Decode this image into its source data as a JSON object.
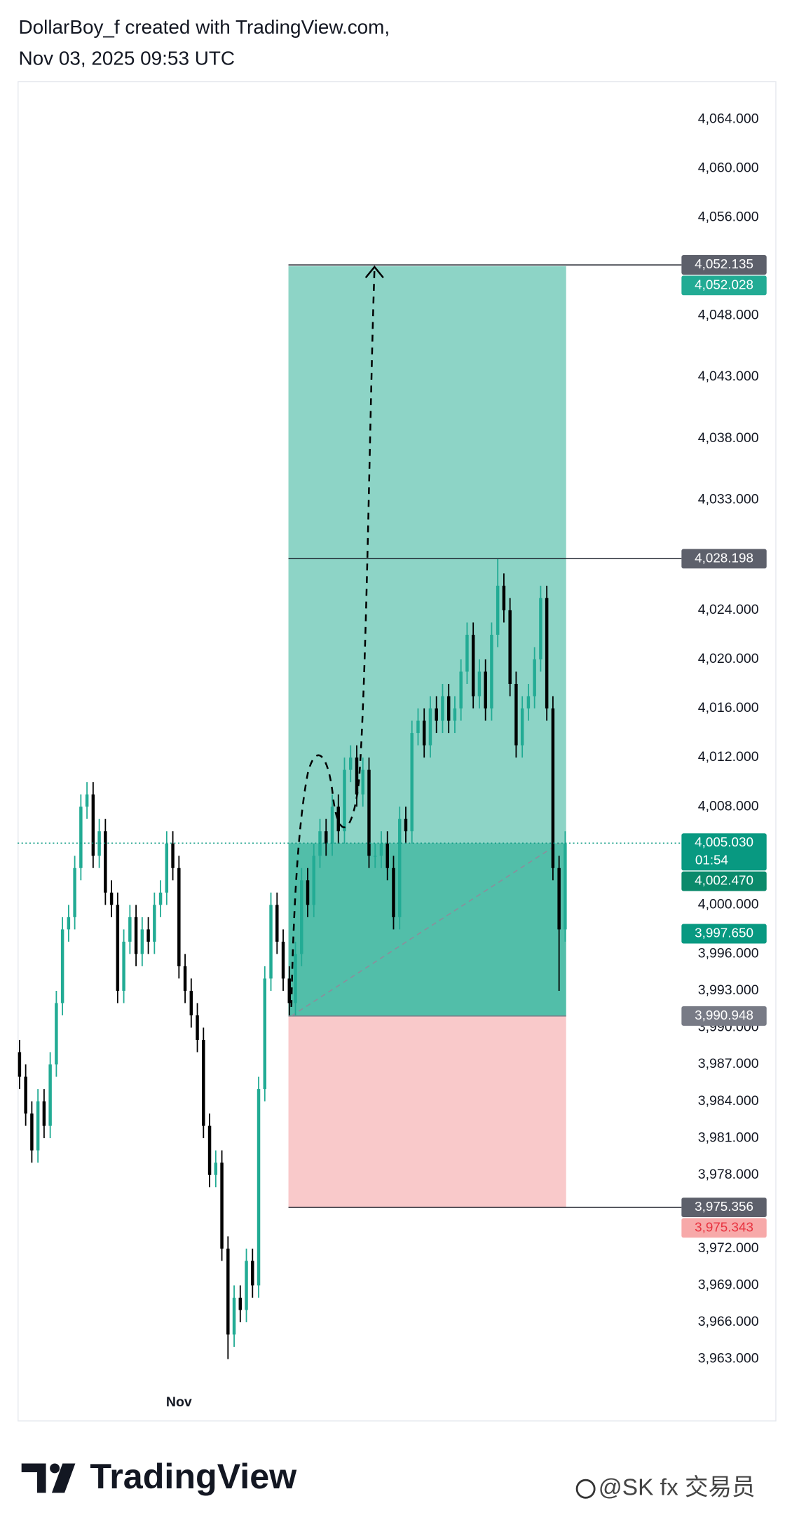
{
  "header": {
    "line1": "DollarBoy_f created with TradingView.com,",
    "line2": "Nov 03, 2025 09:53 UTC"
  },
  "chart_data": {
    "type": "candlestick",
    "ylim": [
      3958.0,
      4067.1
    ],
    "yticks": [
      {
        "value": 4064,
        "label": "4,064.000"
      },
      {
        "value": 4060,
        "label": "4,060.000"
      },
      {
        "value": 4056,
        "label": "4,056.000"
      },
      {
        "value": 4048,
        "label": "4,048.000"
      },
      {
        "value": 4043,
        "label": "4,043.000"
      },
      {
        "value": 4038,
        "label": "4,038.000"
      },
      {
        "value": 4033,
        "label": "4,033.000"
      },
      {
        "value": 4024,
        "label": "4,024.000"
      },
      {
        "value": 4020,
        "label": "4,020.000"
      },
      {
        "value": 4016,
        "label": "4,016.000"
      },
      {
        "value": 4012,
        "label": "4,012.000"
      },
      {
        "value": 4008,
        "label": "4,008.000"
      },
      {
        "value": 4000,
        "label": "4,000.000"
      },
      {
        "value": 3996,
        "label": "3,996.000"
      },
      {
        "value": 3993,
        "label": "3,993.000"
      },
      {
        "value": 3990,
        "label": "3,990.000"
      },
      {
        "value": 3987,
        "label": "3,987.000"
      },
      {
        "value": 3984,
        "label": "3,984.000"
      },
      {
        "value": 3981,
        "label": "3,981.000"
      },
      {
        "value": 3978,
        "label": "3,978.000"
      },
      {
        "value": 3972,
        "label": "3,972.000"
      },
      {
        "value": 3969,
        "label": "3,969.000"
      },
      {
        "value": 3966,
        "label": "3,966.000"
      },
      {
        "value": 3963,
        "label": "3,963.000"
      }
    ],
    "categories": [
      null,
      null,
      null,
      null,
      null,
      null,
      null,
      null,
      null,
      null,
      null,
      null,
      null,
      null,
      null,
      null,
      null,
      null,
      null,
      null,
      null,
      null,
      null,
      null,
      null,
      null,
      "Nov",
      null,
      null,
      null,
      null,
      null,
      null,
      null,
      null,
      null,
      null,
      null,
      null,
      null,
      null,
      null,
      null,
      null,
      null,
      null,
      null,
      null,
      null,
      null,
      null,
      null,
      null,
      null,
      null,
      null,
      null,
      null,
      null,
      null,
      null,
      null,
      null,
      null,
      null,
      null,
      null,
      null,
      null,
      null,
      null,
      null,
      null,
      null,
      null,
      null,
      null,
      null,
      null,
      null,
      null,
      null,
      null,
      null,
      null,
      null,
      null,
      null,
      null,
      null
    ],
    "open": [
      3988,
      3986,
      3983,
      3980,
      3984,
      3982,
      3987,
      3992,
      3998,
      3999,
      4003,
      4008,
      4009,
      4004,
      4006,
      4001,
      4000,
      3993,
      3997,
      3999,
      3996,
      3998,
      3997,
      4000,
      4001,
      4005,
      4003,
      3995,
      3993,
      3991,
      3989,
      3982,
      3978,
      3979,
      3972,
      3965,
      3968,
      3967,
      3971,
      3969,
      3985,
      3994,
      4000,
      3997,
      3994,
      3992,
      3996,
      4002,
      4000,
      4004,
      4006,
      4005,
      4008,
      4006,
      4011,
      4012,
      4009,
      4011,
      4004,
      4004,
      4005,
      4003,
      3999,
      4007,
      4006,
      4014,
      4015,
      4013,
      4016,
      4015,
      4017,
      4015,
      4016,
      4019,
      4022,
      4017,
      4019,
      4016,
      4022,
      4026,
      4024,
      4018,
      4013,
      4016,
      4017,
      4020,
      4025,
      4016,
      4003,
      3998
    ],
    "high": [
      3989,
      3987,
      3984,
      3985,
      3985,
      3988,
      3993,
      3999,
      4000,
      4004,
      4009,
      4010,
      4010,
      4007,
      4007,
      4002,
      4001,
      3998,
      4000,
      4000,
      3999,
      3999,
      4001,
      4002,
      4006,
      4006,
      4004,
      3996,
      3994,
      3992,
      3990,
      3983,
      3980,
      3980,
      3973,
      3969,
      3969,
      3972,
      3972,
      3986,
      3995,
      4001,
      4001,
      3998,
      3995,
      3997,
      4003,
      4003,
      4005,
      4007,
      4007,
      4009,
      4009,
      4012,
      4013,
      4013,
      4012,
      4012,
      4005,
      4006,
      4006,
      4004,
      4008,
      4008,
      4015,
      4016,
      4016,
      4017,
      4017,
      4018,
      4018,
      4017,
      4020,
      4023,
      4023,
      4020,
      4020,
      4023,
      4028.198,
      4027,
      4025,
      4019,
      4017,
      4018,
      4021,
      4026,
      4026,
      4017,
      4004,
      4006
    ],
    "low": [
      3985,
      3982,
      3979,
      3979,
      3981,
      3981,
      3986,
      3991,
      3997,
      3998,
      4002,
      4007,
      4003,
      4003,
      4000,
      3999,
      3992,
      3992,
      3996,
      3995,
      3995,
      3996,
      3996,
      3999,
      4000,
      4002,
      3994,
      3992,
      3990,
      3988,
      3981,
      3977,
      3977,
      3971,
      3963,
      3964,
      3966,
      3966,
      3968,
      3968,
      3984,
      3993,
      3996,
      3993,
      3991,
      3991,
      3995,
      3999,
      3999,
      4003,
      4004,
      4004,
      4005,
      4005,
      4010,
      4008,
      4008,
      4003,
      4003,
      4003,
      4002,
      3998,
      3998,
      4005,
      4005,
      4013,
      4012,
      4012,
      4014,
      4014,
      4014,
      4014,
      4015,
      4018,
      4016,
      4016,
      4015,
      4015,
      4021,
      4023,
      4017,
      4012,
      4012,
      4015,
      4016,
      4019,
      4015,
      4002,
      3993,
      3997
    ],
    "close": [
      3986,
      3983,
      3980,
      3984,
      3982,
      3987,
      3992,
      3998,
      3999,
      4003,
      4008,
      4009,
      4004,
      4006,
      4001,
      4000,
      3993,
      3997,
      3999,
      3996,
      3998,
      3997,
      4000,
      4001,
      4005,
      4003,
      3995,
      3993,
      3991,
      3989,
      3982,
      3978,
      3979,
      3972,
      3965,
      3968,
      3967,
      3971,
      3969,
      3985,
      3994,
      4000,
      3997,
      3994,
      3992,
      3996,
      4002,
      4000,
      4004,
      4006,
      4005,
      4008,
      4006,
      4011,
      4012,
      4009,
      4011,
      4004,
      4004,
      4005,
      4003,
      3999,
      4007,
      4006,
      4014,
      4015,
      4013,
      4016,
      4015,
      4017,
      4015,
      4016,
      4019,
      4022,
      4017,
      4019,
      4016,
      4022,
      4026,
      4024,
      4018,
      4013,
      4016,
      4017,
      4020,
      4025,
      4016,
      4003,
      3998,
      4005
    ],
    "up_color": "#22ab94",
    "down_color": "#000000",
    "position": {
      "type": "long",
      "target": 4052.028,
      "current": 4005.03,
      "entry": 3990.948,
      "stop": 3975.343,
      "target_color": "#8dd4c6",
      "gain_color": "#52bea9",
      "loss_color": "#f9c9ca"
    },
    "price_tags": [
      {
        "value": 4052.135,
        "label": "4,052.135",
        "color": "#5d606b",
        "text_color": "#ffffff",
        "line": true
      },
      {
        "value": 4052.028,
        "label": "4,052.028",
        "color": "#22ab94",
        "text_color": "#ffffff"
      },
      {
        "value": 4028.198,
        "label": "4,028.198",
        "color": "#5d606b",
        "text_color": "#ffffff",
        "line": true
      },
      {
        "value": 4005.03,
        "label": "4,005.030",
        "sublabel": "01:54",
        "color": "#089981",
        "text_color": "#ffffff",
        "price_line": "dotted"
      },
      {
        "value": 4002.47,
        "label": "4,002.470",
        "color": "#0b8a6b",
        "text_color": "#ffffff"
      },
      {
        "value": 3997.65,
        "label": "3,997.650",
        "color": "#089981",
        "text_color": "#ffffff"
      },
      {
        "value": 3990.948,
        "label": "3,990.948",
        "color": "#787b86",
        "text_color": "#ffffff"
      },
      {
        "value": 3975.356,
        "label": "3,975.356",
        "color": "#5d606b",
        "text_color": "#ffffff",
        "line": true
      },
      {
        "value": 3975.343,
        "label": "3,975.343",
        "color": "#f7a9a9",
        "text_color": "#e8323f"
      }
    ]
  },
  "footer": {
    "brand": "TradingView",
    "watermark": "@SK fx 交易员"
  }
}
